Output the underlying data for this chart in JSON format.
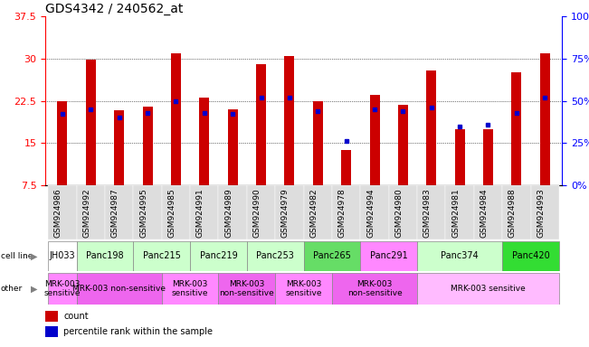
{
  "title": "GDS4342 / 240562_at",
  "gsm_labels": [
    "GSM924986",
    "GSM924992",
    "GSM924987",
    "GSM924995",
    "GSM924985",
    "GSM924991",
    "GSM924989",
    "GSM924990",
    "GSM924979",
    "GSM924982",
    "GSM924978",
    "GSM924994",
    "GSM924980",
    "GSM924983",
    "GSM924981",
    "GSM924984",
    "GSM924988",
    "GSM924993"
  ],
  "count_values": [
    22.5,
    29.8,
    20.8,
    21.5,
    31.0,
    23.0,
    21.0,
    29.0,
    30.5,
    22.5,
    13.7,
    23.5,
    21.8,
    27.8,
    17.5,
    17.5,
    27.5,
    31.0
  ],
  "percentile_values": [
    42,
    45,
    40,
    43,
    50,
    43,
    42,
    52,
    52,
    44,
    26,
    45,
    44,
    46,
    35,
    36,
    43,
    52
  ],
  "ymin": 7.5,
  "ymax": 37.5,
  "yticks": [
    7.5,
    15.0,
    22.5,
    30.0,
    37.5
  ],
  "y2min": 0,
  "y2max": 100,
  "y2ticks": [
    0,
    25,
    50,
    75,
    100
  ],
  "bar_color": "#cc0000",
  "dot_color": "#0000cc",
  "bar_width": 0.35,
  "cell_line_groups": [
    {
      "label": "JH033",
      "cols": [
        0
      ],
      "color": "#ffffff"
    },
    {
      "label": "Panc198",
      "cols": [
        1,
        2
      ],
      "color": "#ccffcc"
    },
    {
      "label": "Panc215",
      "cols": [
        3,
        4
      ],
      "color": "#ccffcc"
    },
    {
      "label": "Panc219",
      "cols": [
        5,
        6
      ],
      "color": "#ccffcc"
    },
    {
      "label": "Panc253",
      "cols": [
        7,
        8
      ],
      "color": "#ccffcc"
    },
    {
      "label": "Panc265",
      "cols": [
        9,
        10
      ],
      "color": "#66dd66"
    },
    {
      "label": "Panc291",
      "cols": [
        11,
        12
      ],
      "color": "#ff88ff"
    },
    {
      "label": "Panc374",
      "cols": [
        13,
        14,
        15
      ],
      "color": "#ccffcc"
    },
    {
      "label": "Panc420",
      "cols": [
        16,
        17
      ],
      "color": "#33dd33"
    }
  ],
  "other_groups": [
    {
      "label": "MRK-003\nsensitive",
      "cols": [
        0
      ],
      "color": "#ff88ff"
    },
    {
      "label": "MRK-003 non-sensitive",
      "cols": [
        1,
        2,
        3
      ],
      "color": "#ee66ee"
    },
    {
      "label": "MRK-003\nsensitive",
      "cols": [
        4,
        5
      ],
      "color": "#ff88ff"
    },
    {
      "label": "MRK-003\nnon-sensitive",
      "cols": [
        6,
        7
      ],
      "color": "#ee66ee"
    },
    {
      "label": "MRK-003\nsensitive",
      "cols": [
        8,
        9
      ],
      "color": "#ff88ff"
    },
    {
      "label": "MRK-003\nnon-sensitive",
      "cols": [
        10,
        11,
        12
      ],
      "color": "#ee66ee"
    },
    {
      "label": "MRK-003 sensitive",
      "cols": [
        13,
        14,
        15,
        16,
        17
      ],
      "color": "#ffbbff"
    }
  ],
  "col_bg_color": "#dddddd",
  "xtick_fontsize": 6.5,
  "ytick_fontsize": 8,
  "title_fontsize": 10
}
